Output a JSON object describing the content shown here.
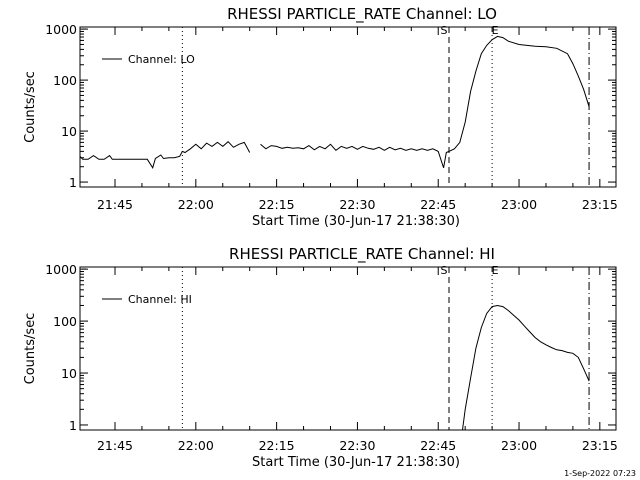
{
  "footer": {
    "date_stamp": "1-Sep-2022 07:23"
  },
  "chart_data": [
    {
      "type": "line",
      "title": "RHESSI PARTICLE_RATE Channel: LO",
      "xlabel": "Start Time (30-Jun-17 21:38:30)",
      "ylabel": "Counts/sec",
      "yscale": "log",
      "xlim": [
        "21:38:30",
        "23:18:00"
      ],
      "ylim": [
        0.8,
        1100
      ],
      "x_ticks": [
        "21:45",
        "22:00",
        "22:15",
        "22:30",
        "22:45",
        "23:00",
        "23:15"
      ],
      "y_ticks": [
        "1",
        "10",
        "100",
        "1000"
      ],
      "legend": {
        "position": "top-left",
        "entries": [
          "Channel: LO"
        ]
      },
      "markers": [
        {
          "time": "21:57:30",
          "style": "dotted",
          "label": ""
        },
        {
          "time": "22:47:00",
          "style": "dashed",
          "label": "S"
        },
        {
          "time": "22:55:00",
          "style": "dotted",
          "label": "E"
        },
        {
          "time": "23:13:00",
          "style": "dash-dot",
          "label": ""
        }
      ],
      "series": [
        {
          "name": "Channel: LO",
          "segments": [
            [
              [
                "21:38:30",
                3.2
              ],
              [
                "21:39:00",
                2.8
              ],
              [
                "21:40:00",
                2.8
              ],
              [
                "21:41:00",
                3.3
              ],
              [
                "21:42:00",
                2.8
              ],
              [
                "21:43:00",
                2.8
              ],
              [
                "21:44:00",
                3.3
              ],
              [
                "21:44:30",
                2.8
              ],
              [
                "21:46:00",
                2.8
              ],
              [
                "21:50:00",
                2.8
              ],
              [
                "21:51:00",
                2.8
              ],
              [
                "21:52:00",
                1.9
              ],
              [
                "21:52:30",
                2.9
              ],
              [
                "21:53:30",
                3.4
              ],
              [
                "21:54:00",
                2.9
              ],
              [
                "21:55:00",
                3.0
              ],
              [
                "21:56:00",
                3.0
              ],
              [
                "21:57:00",
                3.2
              ],
              [
                "21:57:30",
                4.0
              ],
              [
                "21:58:00",
                3.8
              ],
              [
                "21:59:00",
                4.5
              ],
              [
                "22:00:00",
                5.5
              ],
              [
                "22:01:00",
                4.5
              ],
              [
                "22:02:00",
                5.8
              ],
              [
                "22:03:00",
                5.0
              ],
              [
                "22:04:00",
                6.0
              ],
              [
                "22:05:00",
                5.0
              ],
              [
                "22:06:00",
                6.2
              ],
              [
                "22:07:00",
                4.8
              ],
              [
                "22:08:00",
                5.5
              ],
              [
                "22:09:00",
                6.0
              ],
              [
                "22:10:00",
                3.8
              ]
            ],
            [
              [
                "22:12:00",
                5.5
              ],
              [
                "22:13:00",
                4.5
              ],
              [
                "22:14:00",
                5.2
              ],
              [
                "22:15:00",
                5.0
              ],
              [
                "22:16:00",
                4.6
              ],
              [
                "22:17:00",
                4.8
              ],
              [
                "22:18:00",
                4.6
              ],
              [
                "22:19:00",
                4.7
              ],
              [
                "22:20:00",
                4.5
              ],
              [
                "22:21:00",
                5.2
              ],
              [
                "22:22:00",
                4.3
              ],
              [
                "22:23:00",
                5.0
              ],
              [
                "22:24:00",
                4.5
              ],
              [
                "22:25:00",
                5.5
              ],
              [
                "22:26:00",
                4.2
              ],
              [
                "22:27:00",
                5.0
              ],
              [
                "22:28:00",
                4.6
              ],
              [
                "22:29:00",
                5.0
              ],
              [
                "22:30:00",
                4.4
              ],
              [
                "22:31:00",
                5.0
              ],
              [
                "22:32:00",
                4.6
              ],
              [
                "22:33:00",
                4.4
              ],
              [
                "22:34:00",
                4.8
              ],
              [
                "22:35:00",
                4.2
              ],
              [
                "22:36:00",
                4.8
              ],
              [
                "22:37:00",
                4.3
              ],
              [
                "22:38:00",
                4.6
              ],
              [
                "22:39:00",
                4.2
              ],
              [
                "22:40:00",
                4.5
              ],
              [
                "22:41:00",
                4.2
              ],
              [
                "22:42:00",
                4.5
              ],
              [
                "22:43:00",
                4.2
              ],
              [
                "22:44:00",
                4.5
              ],
              [
                "22:45:00",
                4.0
              ],
              [
                "22:46:00",
                1.9
              ],
              [
                "22:46:30",
                3.8
              ],
              [
                "22:47:00",
                4.0
              ],
              [
                "22:48:00",
                4.5
              ],
              [
                "22:49:00",
                6.0
              ],
              [
                "22:50:00",
                15.0
              ],
              [
                "22:51:00",
                60.0
              ],
              [
                "22:52:00",
                150.0
              ],
              [
                "22:53:00",
                330.0
              ],
              [
                "22:54:00",
                480.0
              ],
              [
                "22:55:00",
                620.0
              ],
              [
                "22:56:00",
                720.0
              ],
              [
                "22:57:00",
                680.0
              ],
              [
                "22:58:00",
                580.0
              ],
              [
                "23:00:00",
                500.0
              ],
              [
                "23:03:00",
                460.0
              ],
              [
                "23:05:00",
                450.0
              ],
              [
                "23:07:00",
                420.0
              ],
              [
                "23:09:00",
                330.0
              ],
              [
                "23:10:00",
                210.0
              ],
              [
                "23:11:00",
                120.0
              ],
              [
                "23:12:00",
                65.0
              ],
              [
                "23:13:00",
                30.0
              ]
            ]
          ]
        }
      ]
    },
    {
      "type": "line",
      "title": "RHESSI PARTICLE_RATE Channel: HI",
      "xlabel": "Start Time (30-Jun-17 21:38:30)",
      "ylabel": "Counts/sec",
      "yscale": "log",
      "xlim": [
        "21:38:30",
        "23:18:00"
      ],
      "ylim": [
        0.8,
        1100
      ],
      "x_ticks": [
        "21:45",
        "22:00",
        "22:15",
        "22:30",
        "22:45",
        "23:00",
        "23:15"
      ],
      "y_ticks": [
        "1",
        "10",
        "100",
        "1000"
      ],
      "legend": {
        "position": "top-left",
        "entries": [
          "Channel: HI"
        ]
      },
      "markers": [
        {
          "time": "21:57:30",
          "style": "dotted",
          "label": ""
        },
        {
          "time": "22:47:00",
          "style": "dashed",
          "label": "S"
        },
        {
          "time": "22:55:00",
          "style": "dotted",
          "label": "E"
        },
        {
          "time": "23:13:00",
          "style": "dash-dot",
          "label": ""
        }
      ],
      "series": [
        {
          "name": "Channel: HI",
          "segments": [
            [
              [
                "22:49:30",
                0.8
              ],
              [
                "22:50:00",
                2.0
              ],
              [
                "22:51:00",
                8.0
              ],
              [
                "22:52:00",
                30.0
              ],
              [
                "22:53:00",
                75.0
              ],
              [
                "22:54:00",
                140.0
              ],
              [
                "22:55:00",
                190.0
              ],
              [
                "22:56:00",
                200.0
              ],
              [
                "22:57:00",
                190.0
              ],
              [
                "22:58:00",
                160.0
              ],
              [
                "22:59:00",
                130.0
              ],
              [
                "23:00:00",
                105.0
              ],
              [
                "23:01:00",
                80.0
              ],
              [
                "23:02:00",
                62.0
              ],
              [
                "23:03:00",
                48.0
              ],
              [
                "23:04:00",
                40.0
              ],
              [
                "23:05:00",
                35.0
              ],
              [
                "23:06:00",
                31.0
              ],
              [
                "23:07:00",
                28.0
              ],
              [
                "23:08:00",
                27.0
              ],
              [
                "23:09:00",
                25.0
              ],
              [
                "23:10:00",
                24.0
              ],
              [
                "23:11:00",
                20.0
              ],
              [
                "23:12:00",
                12.0
              ],
              [
                "23:13:00",
                7.0
              ]
            ]
          ]
        }
      ]
    }
  ]
}
